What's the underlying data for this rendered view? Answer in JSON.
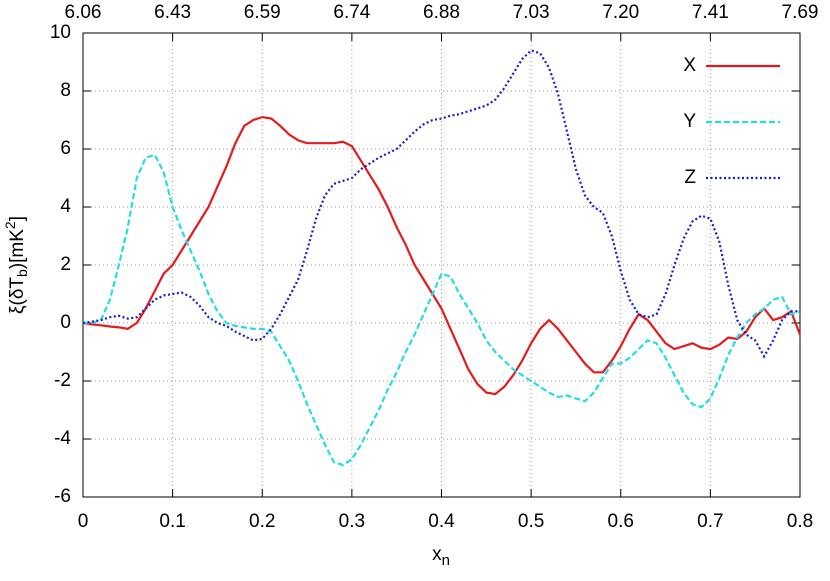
{
  "chart_data": {
    "type": "line",
    "xlabel": [
      "x",
      "n"
    ],
    "ylabel": [
      "ξ(δT",
      "b",
      ")[mK",
      "2",
      "]"
    ],
    "x": [
      0,
      0.01,
      0.02,
      0.03,
      0.04,
      0.05,
      0.06,
      0.07,
      0.08,
      0.09,
      0.1,
      0.11,
      0.12,
      0.13,
      0.14,
      0.15,
      0.16,
      0.17,
      0.18,
      0.19,
      0.2,
      0.21,
      0.22,
      0.23,
      0.24,
      0.25,
      0.26,
      0.27,
      0.28,
      0.29,
      0.3,
      0.31,
      0.32,
      0.33,
      0.34,
      0.35,
      0.36,
      0.37,
      0.38,
      0.39,
      0.4,
      0.41,
      0.42,
      0.43,
      0.44,
      0.45,
      0.46,
      0.47,
      0.48,
      0.49,
      0.5,
      0.51,
      0.52,
      0.53,
      0.54,
      0.55,
      0.56,
      0.57,
      0.58,
      0.59,
      0.6,
      0.61,
      0.62,
      0.63,
      0.64,
      0.65,
      0.66,
      0.67,
      0.68,
      0.69,
      0.7,
      0.71,
      0.72,
      0.73,
      0.74,
      0.75,
      0.76,
      0.77,
      0.78,
      0.79,
      0.8
    ],
    "series": [
      {
        "name": "X",
        "color": "#e41a1c",
        "style": "solid",
        "values": [
          0,
          -0.05,
          -0.08,
          -0.12,
          -0.15,
          -0.2,
          0,
          0.5,
          1.1,
          1.7,
          2,
          2.5,
          3,
          3.5,
          4,
          4.7,
          5.4,
          6.2,
          6.8,
          7,
          7.1,
          7.05,
          6.8,
          6.5,
          6.3,
          6.2,
          6.2,
          6.2,
          6.2,
          6.25,
          6.1,
          5.6,
          5.1,
          4.6,
          4,
          3.3,
          2.7,
          2,
          1.5,
          1,
          0.5,
          -0.2,
          -0.9,
          -1.6,
          -2.1,
          -2.4,
          -2.45,
          -2.2,
          -1.8,
          -1.3,
          -0.7,
          -0.2,
          0.1,
          -0.2,
          -0.6,
          -1,
          -1.4,
          -1.7,
          -1.7,
          -1.3,
          -0.8,
          -0.2,
          0.3,
          0.1,
          -0.3,
          -0.7,
          -0.9,
          -0.8,
          -0.7,
          -0.85,
          -0.9,
          -0.75,
          -0.5,
          -0.55,
          -0.3,
          0.2,
          0.5,
          0.1,
          0.2,
          0.4,
          -0.4
        ]
      },
      {
        "name": "Y",
        "color": "#22dce6",
        "style": "dashed",
        "values": [
          0,
          0,
          0.1,
          0.8,
          2,
          3.3,
          5,
          5.7,
          5.8,
          5.2,
          4,
          3.2,
          2.5,
          1.8,
          1,
          0.4,
          0,
          -0.1,
          -0.15,
          -0.2,
          -0.2,
          -0.3,
          -0.8,
          -1.3,
          -2,
          -2.8,
          -3.5,
          -4.2,
          -4.8,
          -4.9,
          -4.7,
          -4.2,
          -3.6,
          -3,
          -2.3,
          -1.7,
          -1,
          -0.4,
          0.3,
          1,
          1.7,
          1.6,
          1,
          0.5,
          0,
          -0.6,
          -1,
          -1.3,
          -1.6,
          -1.8,
          -2,
          -2.2,
          -2.4,
          -2.55,
          -2.5,
          -2.6,
          -2.7,
          -2.4,
          -1.9,
          -1.4,
          -1.4,
          -1.2,
          -0.9,
          -0.6,
          -0.7,
          -1.2,
          -1.8,
          -2.4,
          -2.8,
          -2.9,
          -2.6,
          -1.9,
          -1.1,
          -0.5,
          0,
          0.3,
          0.5,
          0.8,
          0.9,
          0.3,
          0.4
        ]
      },
      {
        "name": "Z",
        "color": "#1a1acc",
        "style": "dotted",
        "values": [
          0,
          0.05,
          0.1,
          0.2,
          0.25,
          0.15,
          0.2,
          0.5,
          0.8,
          0.95,
          1,
          1.05,
          0.9,
          0.6,
          0.2,
          0,
          -0.1,
          -0.3,
          -0.45,
          -0.6,
          -0.55,
          -0.2,
          0.3,
          0.9,
          1.5,
          2.5,
          3.6,
          4.4,
          4.8,
          4.9,
          5,
          5.3,
          5.5,
          5.7,
          5.85,
          6,
          6.3,
          6.6,
          6.85,
          7,
          7.05,
          7.15,
          7.2,
          7.3,
          7.4,
          7.5,
          7.7,
          8.1,
          8.6,
          9.1,
          9.4,
          9.3,
          8.8,
          7.9,
          6.6,
          5.3,
          4.4,
          4,
          3.8,
          3,
          1.8,
          0.8,
          0.3,
          0.2,
          0.3,
          1,
          2,
          2.9,
          3.5,
          3.7,
          3.6,
          2.8,
          1.3,
          0.1,
          -0.4,
          -0.6,
          -1.15,
          -0.6,
          0.1,
          0.4,
          0.4
        ]
      }
    ],
    "xlim": [
      0,
      0.8
    ],
    "xticks": [
      0,
      0.1,
      0.2,
      0.3,
      0.4,
      0.5,
      0.6,
      0.7,
      0.8
    ],
    "x2ticklabels": [
      "6.06",
      "6.43",
      "6.59",
      "6.74",
      "6.88",
      "7.03",
      "7.20",
      "7.41",
      "7.69"
    ],
    "ylim": [
      -6,
      10
    ],
    "yticks": [
      -6,
      -4,
      -2,
      0,
      2,
      4,
      6,
      8,
      10
    ],
    "grid": true,
    "legend": "top-right"
  }
}
